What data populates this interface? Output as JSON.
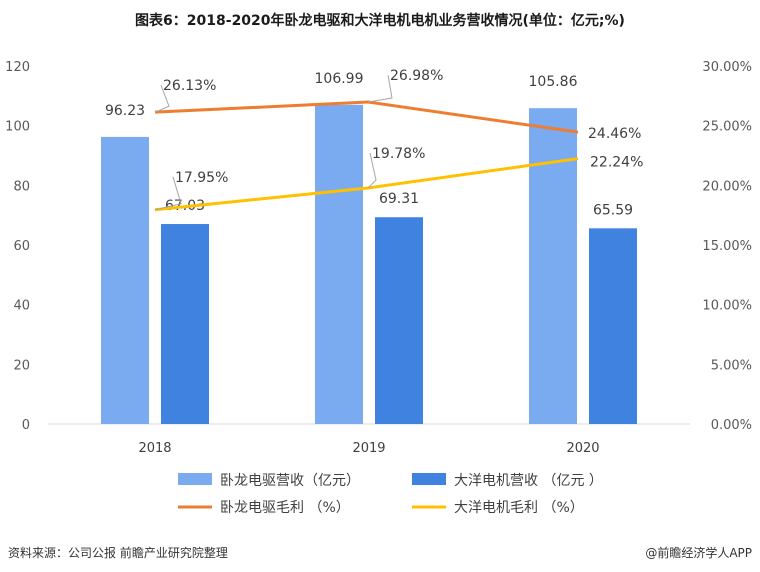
{
  "title": "图表6：2018-2020年卧龙电驱和大洋电机电机业务营收情况(单位：亿元;%)",
  "footer": {
    "source": "资料来源：公司公报 前瞻产业研究院整理",
    "brand": "@前瞻经济学人APP"
  },
  "colors": {
    "wolong_revenue": "#7aaaf0",
    "dayang_revenue": "#3f82e0",
    "wolong_margin": "#ed7d31",
    "dayang_margin": "#ffc000"
  },
  "chart_data": {
    "type": "bar",
    "categories": [
      "2018",
      "2019",
      "2020"
    ],
    "ylim": [
      0,
      120
    ],
    "yticks": [
      "0",
      "20",
      "40",
      "60",
      "80",
      "100",
      "120"
    ],
    "y2lim": [
      0,
      30
    ],
    "y2ticks": [
      "0.00%",
      "5.00%",
      "10.00%",
      "15.00%",
      "20.00%",
      "25.00%",
      "30.00%"
    ],
    "grid": false,
    "legend_placement": "bottom",
    "series": [
      {
        "name": "卧龙电驱营收（亿元）",
        "type": "bar",
        "axis": "left",
        "values": [
          96.23,
          106.99,
          105.86
        ],
        "labels": [
          "96.23",
          "106.99",
          "105.86"
        ]
      },
      {
        "name": "大洋电机营收 （亿元 ）",
        "type": "bar",
        "axis": "left",
        "values": [
          67.03,
          69.31,
          65.59
        ],
        "labels": [
          "67.03",
          "69.31",
          "65.59"
        ]
      },
      {
        "name": "卧龙电驱毛利 （%）",
        "type": "line",
        "axis": "right",
        "values": [
          26.13,
          26.98,
          24.46
        ],
        "labels": [
          "26.13%",
          "26.98%",
          "24.46%"
        ]
      },
      {
        "name": "大洋电机毛利 （%）",
        "type": "line",
        "axis": "right",
        "values": [
          17.95,
          19.78,
          22.24
        ],
        "labels": [
          "17.95%",
          "19.78%",
          "22.24%"
        ]
      }
    ]
  }
}
